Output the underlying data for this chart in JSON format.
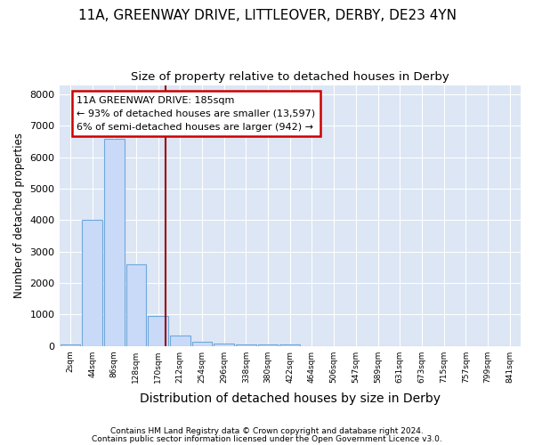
{
  "title1": "11A, GREENWAY DRIVE, LITTLEOVER, DERBY, DE23 4YN",
  "title2": "Size of property relative to detached houses in Derby",
  "xlabel": "Distribution of detached houses by size in Derby",
  "ylabel": "Number of detached properties",
  "bins": [
    "2sqm",
    "44sqm",
    "86sqm",
    "128sqm",
    "170sqm",
    "212sqm",
    "254sqm",
    "296sqm",
    "338sqm",
    "380sqm",
    "422sqm",
    "464sqm",
    "506sqm",
    "547sqm",
    "589sqm",
    "631sqm",
    "673sqm",
    "715sqm",
    "757sqm",
    "799sqm",
    "841sqm"
  ],
  "bar_heights": [
    50,
    4000,
    6600,
    2600,
    950,
    330,
    130,
    70,
    50,
    50,
    50,
    0,
    0,
    0,
    0,
    0,
    0,
    0,
    0,
    0,
    0
  ],
  "bar_color": "#c9daf8",
  "bar_edgecolor": "#6fa8dc",
  "vline_color": "#990000",
  "annotation_lines": [
    "11A GREENWAY DRIVE: 185sqm",
    "← 93% of detached houses are smaller (13,597)",
    "6% of semi-detached houses are larger (942) →"
  ],
  "annotation_box_color": "#cc0000",
  "footer1": "Contains HM Land Registry data © Crown copyright and database right 2024.",
  "footer2": "Contains public sector information licensed under the Open Government Licence v3.0.",
  "ylim": [
    0,
    8300
  ],
  "yticks": [
    0,
    1000,
    2000,
    3000,
    4000,
    5000,
    6000,
    7000,
    8000
  ],
  "fig_bg_color": "#ffffff",
  "plot_bg_color": "#dce6f5",
  "grid_color": "#ffffff",
  "title1_fontsize": 11,
  "title2_fontsize": 9.5,
  "ylabel_fontsize": 8.5,
  "xlabel_fontsize": 10
}
